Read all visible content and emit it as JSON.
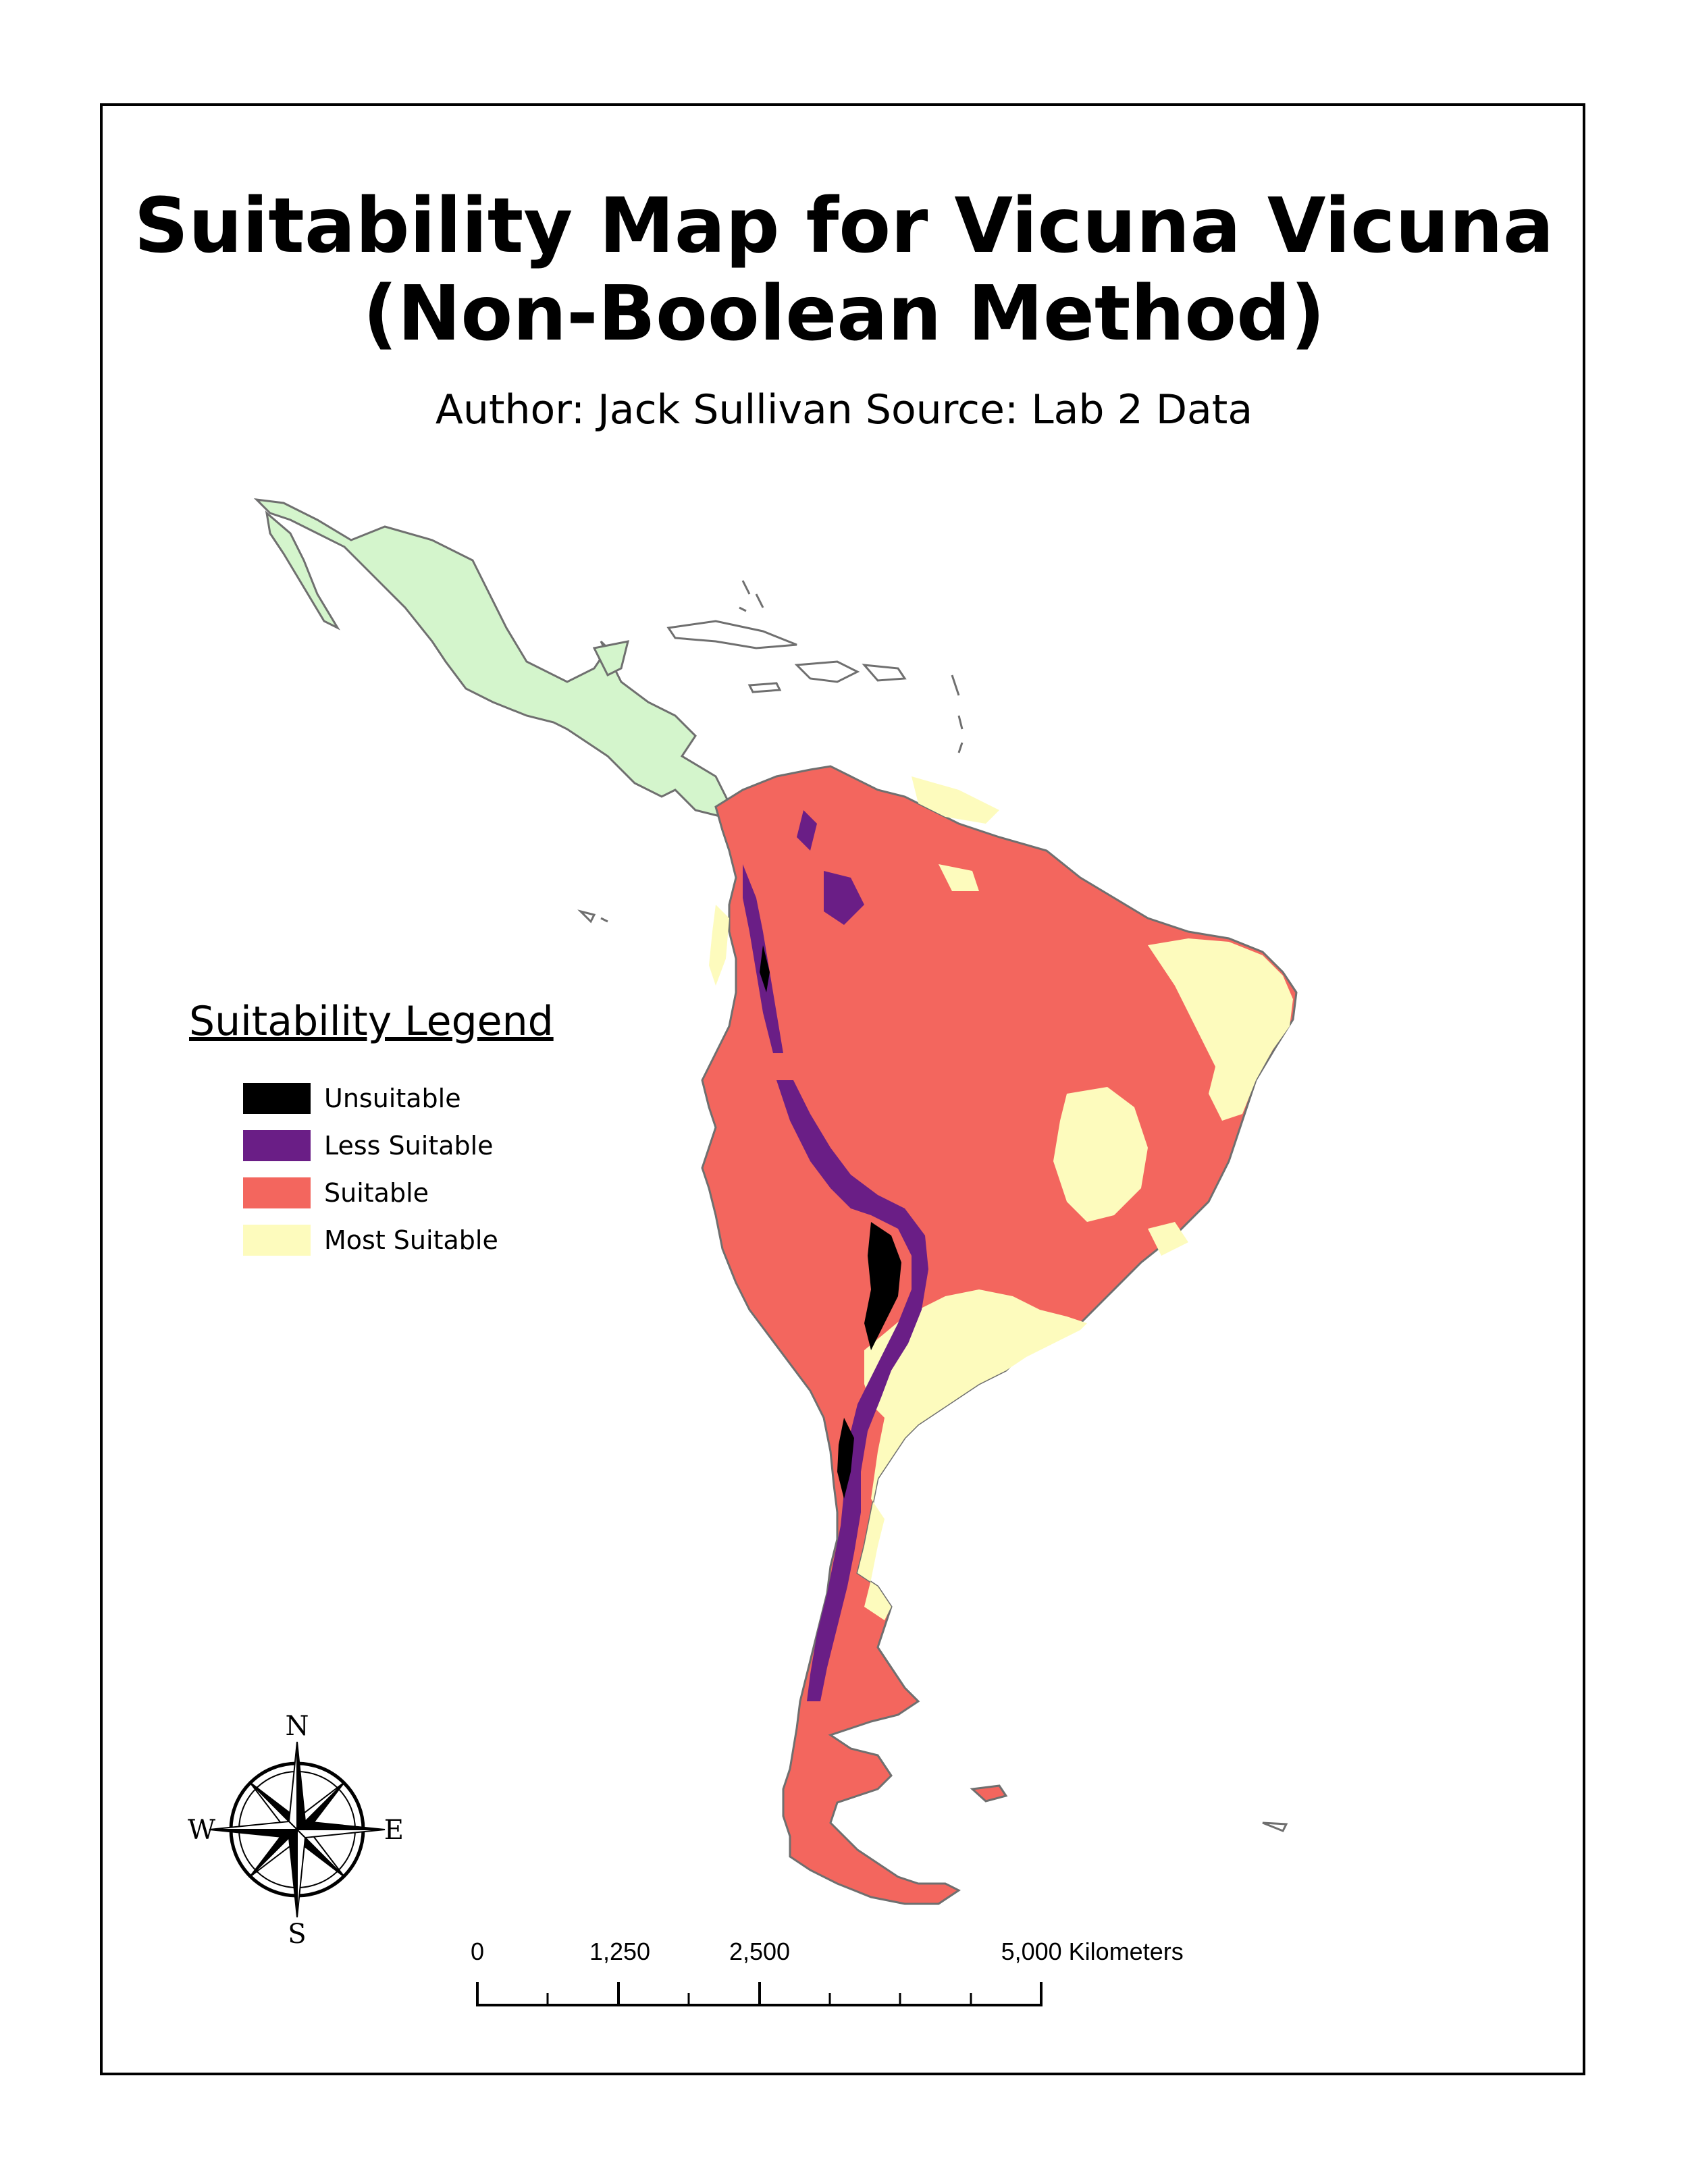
{
  "title": {
    "line1": "Suitability Map for Vicuna Vicuna",
    "line2": "(Non-Boolean Method)"
  },
  "subtitle": "Author: Jack Sullivan Source: Lab 2 Data",
  "legend": {
    "title": "Suitability Legend",
    "items": [
      {
        "label": "Unsuitable",
        "color": "#000000"
      },
      {
        "label": "Less Suitable",
        "color": "#6a1e86"
      },
      {
        "label": "Suitable",
        "color": "#f3665e"
      },
      {
        "label": "Most Suitable",
        "color": "#fdfbbd"
      }
    ]
  },
  "colors": {
    "central_america_fill": "#d4f5cc",
    "outline": "#6f6f6f",
    "frame": "#000000"
  },
  "compass": {
    "north": "N",
    "south": "S",
    "east": "E",
    "west": "W"
  },
  "scalebar": {
    "labels": [
      "0",
      "1,250",
      "2,500",
      "5,000 Kilometers"
    ]
  }
}
